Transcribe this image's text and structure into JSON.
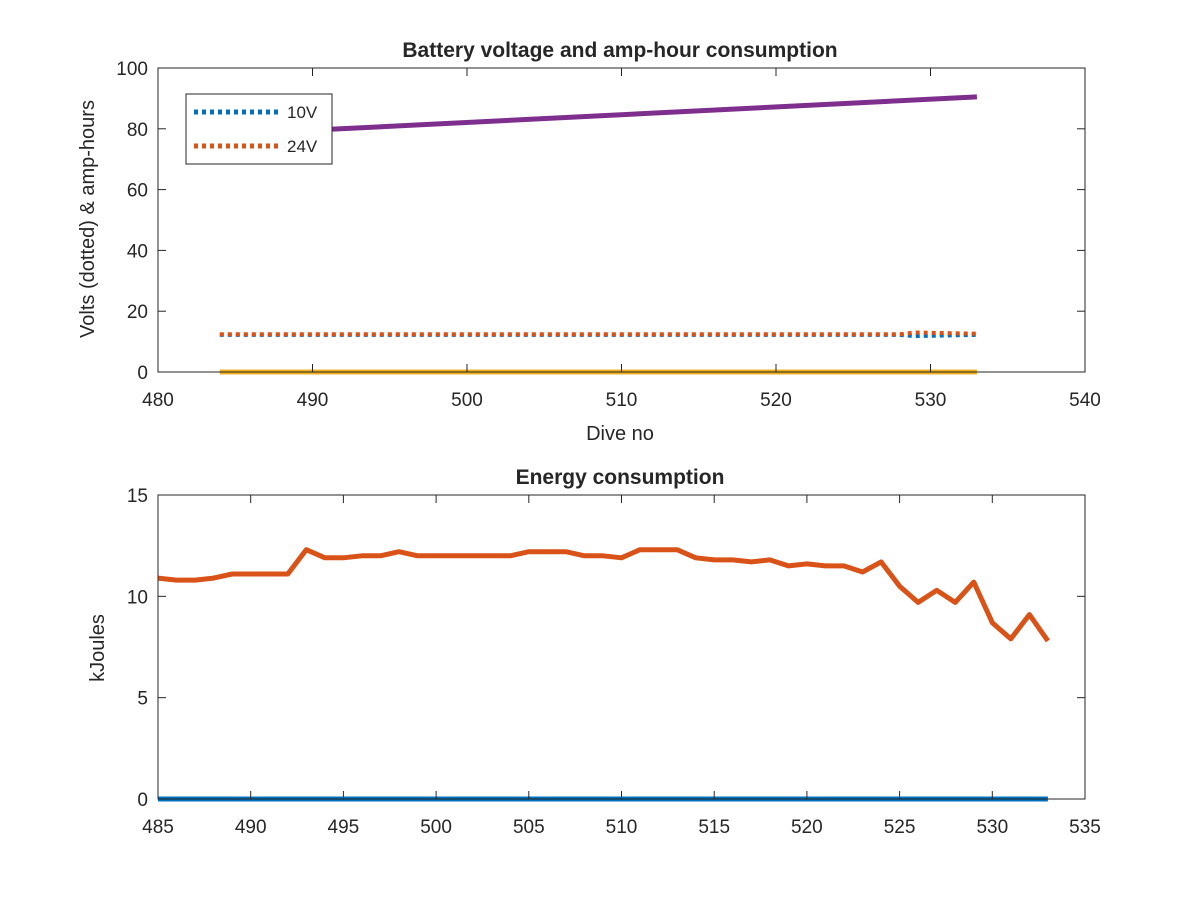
{
  "chart_data": [
    {
      "type": "line",
      "title": "Battery voltage and amp-hour consumption",
      "xlabel": "Dive no",
      "ylabel": "Volts (dotted) & amp-hours",
      "xlim": [
        480,
        540
      ],
      "ylim": [
        0,
        100
      ],
      "xticks": [
        480,
        490,
        500,
        510,
        520,
        530,
        540
      ],
      "yticks": [
        0,
        20,
        40,
        60,
        80,
        100
      ],
      "legend": {
        "position": "top-left",
        "entries": [
          "10V",
          "24V"
        ]
      },
      "grid": false,
      "series": [
        {
          "name": "10V",
          "style": "dotted",
          "color": "#0072BD",
          "x": [
            484,
            528,
            529,
            533
          ],
          "y": [
            12.2,
            12.2,
            11.8,
            12.2
          ]
        },
        {
          "name": "24V",
          "style": "dotted",
          "color": "#D95319",
          "x": [
            484,
            528,
            529,
            533
          ],
          "y": [
            12.4,
            12.4,
            13.0,
            12.6
          ]
        },
        {
          "style": "solid",
          "color": "#7E2F8E",
          "x": [
            491,
            533
          ],
          "y": [
            79.8,
            90.5
          ]
        },
        {
          "style": "solid",
          "color": "#EDB120",
          "x": [
            484,
            533
          ],
          "y": [
            0,
            0
          ]
        }
      ]
    },
    {
      "type": "line",
      "title": "Energy consumption",
      "xlabel": "",
      "ylabel": "kJoules",
      "xlim": [
        485,
        535
      ],
      "ylim": [
        0,
        15
      ],
      "xticks": [
        485,
        490,
        495,
        500,
        505,
        510,
        515,
        520,
        525,
        530,
        535
      ],
      "yticks": [
        0,
        5,
        10,
        15
      ],
      "grid": false,
      "series": [
        {
          "style": "solid",
          "color": "#D95319",
          "x": [
            485,
            486,
            487,
            488,
            489,
            490,
            491,
            492,
            493,
            494,
            495,
            496,
            497,
            498,
            499,
            500,
            501,
            502,
            503,
            504,
            505,
            506,
            507,
            508,
            509,
            510,
            511,
            512,
            513,
            514,
            515,
            516,
            517,
            518,
            519,
            520,
            521,
            522,
            523,
            524,
            525,
            526,
            527,
            528,
            529,
            530,
            531,
            532,
            533
          ],
          "y": [
            10.9,
            10.8,
            10.8,
            10.9,
            11.1,
            11.1,
            11.1,
            11.1,
            12.3,
            11.9,
            11.9,
            12.0,
            12.0,
            12.2,
            12.0,
            12.0,
            12.0,
            12.0,
            12.0,
            12.0,
            12.2,
            12.2,
            12.2,
            12.0,
            12.0,
            11.9,
            12.3,
            12.3,
            12.3,
            11.9,
            11.8,
            11.8,
            11.7,
            11.8,
            11.5,
            11.6,
            11.5,
            11.5,
            11.2,
            11.7,
            10.5,
            9.7,
            10.3,
            9.7,
            10.7,
            8.7,
            7.9,
            9.1,
            7.8
          ]
        },
        {
          "style": "solid",
          "color": "#0072BD",
          "x": [
            485,
            533
          ],
          "y": [
            0,
            0
          ]
        }
      ]
    }
  ]
}
